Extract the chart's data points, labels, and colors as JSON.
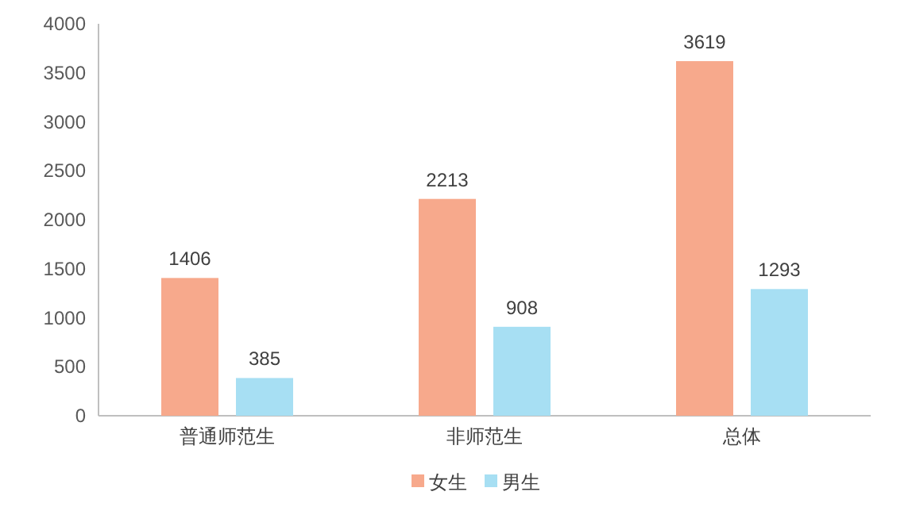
{
  "chart_data": {
    "type": "bar",
    "categories": [
      "普通师范生",
      "非师范生",
      "总体"
    ],
    "series": [
      {
        "name": "女生",
        "color": "#f7a98c",
        "values": [
          1406,
          2213,
          3619
        ]
      },
      {
        "name": "男生",
        "color": "#a7dff3",
        "values": [
          385,
          908,
          1293
        ]
      }
    ],
    "ylim": [
      0,
      4000
    ],
    "yticks": [
      0,
      500,
      1000,
      1500,
      2000,
      2500,
      3000,
      3500,
      4000
    ],
    "data_labels": true,
    "legend": "bottom",
    "grid": false
  }
}
